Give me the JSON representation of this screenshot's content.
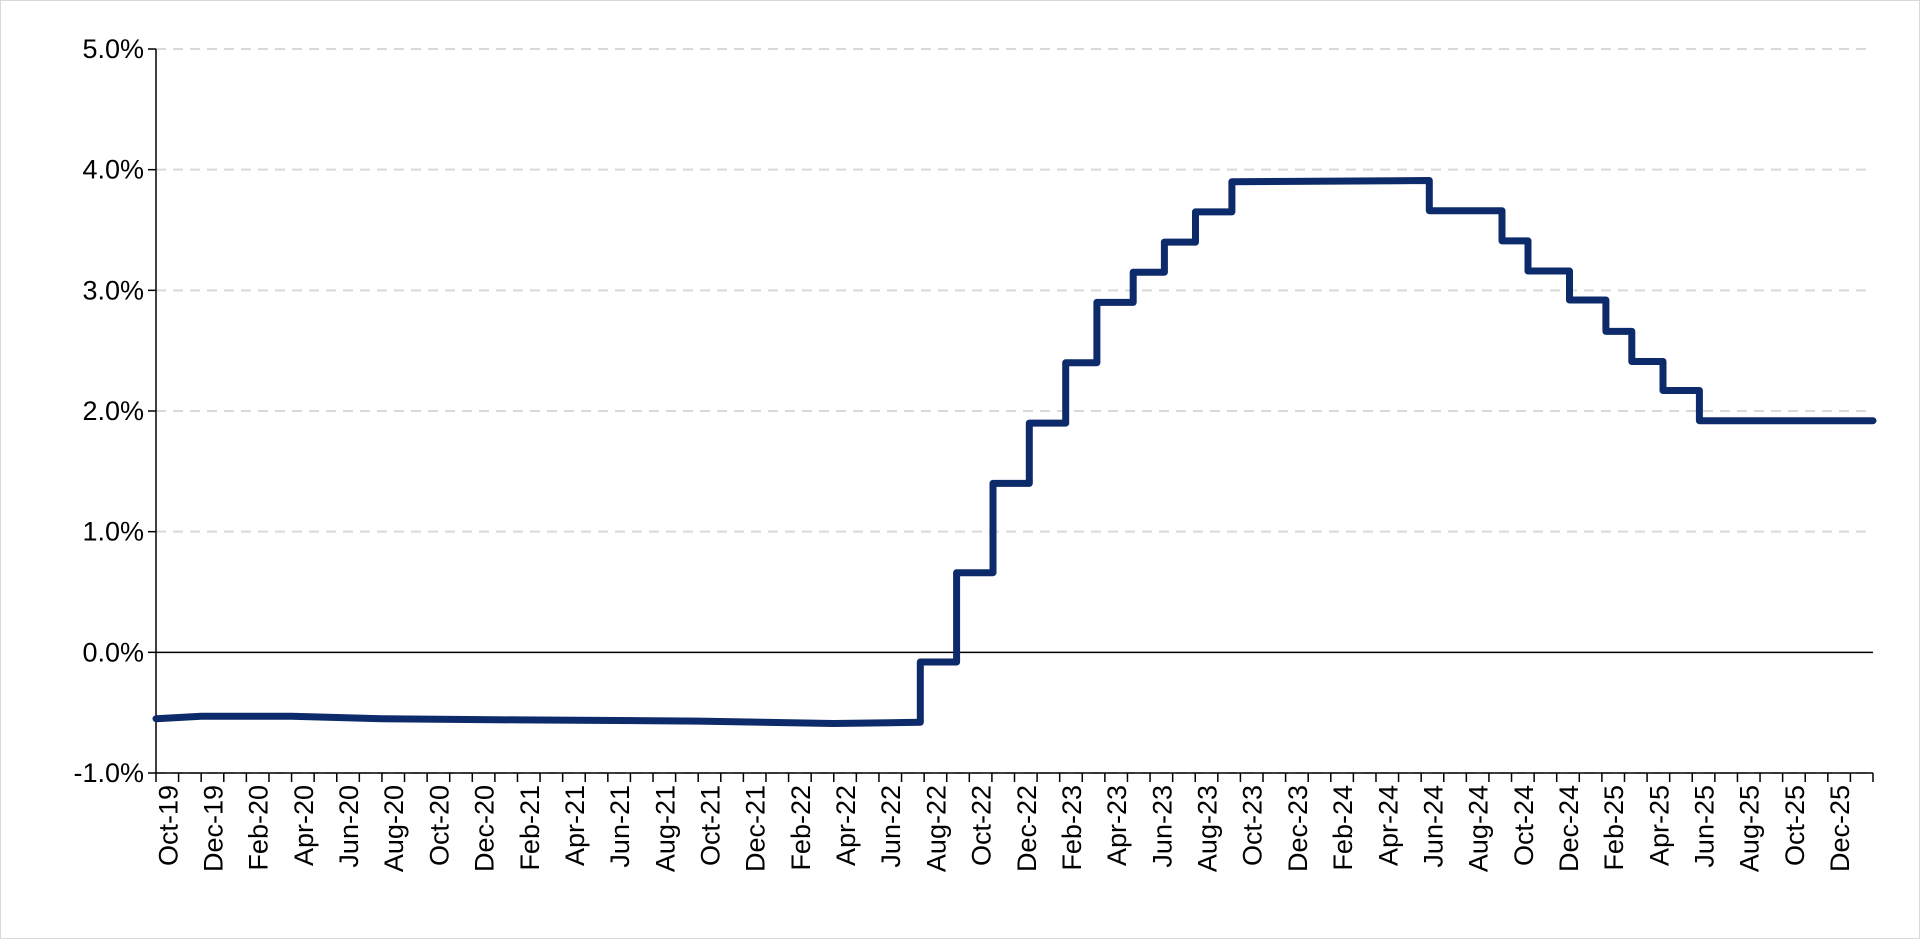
{
  "chart_data": {
    "type": "line",
    "title": "",
    "xlabel": "",
    "ylabel": "",
    "ylim": [
      -1.0,
      5.0
    ],
    "y_ticks": [
      -1.0,
      0.0,
      1.0,
      2.0,
      3.0,
      4.0,
      5.0
    ],
    "y_tick_labels": [
      "-1.0%",
      "0.0%",
      "1.0%",
      "2.0%",
      "3.0%",
      "4.0%",
      "5.0%"
    ],
    "x_tick_labels": [
      "Oct-19",
      "Dec-19",
      "Feb-20",
      "Apr-20",
      "Jun-20",
      "Aug-20",
      "Oct-20",
      "Dec-20",
      "Feb-21",
      "Apr-21",
      "Jun-21",
      "Aug-21",
      "Oct-21",
      "Dec-21",
      "Feb-22",
      "Apr-22",
      "Jun-22",
      "Aug-22",
      "Oct-22",
      "Dec-22",
      "Feb-23",
      "Apr-23",
      "Jun-23",
      "Aug-23",
      "Oct-23",
      "Dec-23",
      "Feb-24",
      "Apr-24",
      "Jun-24",
      "Aug-24",
      "Oct-24",
      "Dec-24",
      "Feb-25",
      "Apr-25",
      "Jun-25",
      "Aug-25",
      "Oct-25",
      "Dec-25"
    ],
    "x_range": [
      "2019-10-01",
      "2026-01-31"
    ],
    "grid": "horizontal dashed",
    "legend": "none",
    "series": [
      {
        "color": "#0d2a6b",
        "step": true,
        "points": [
          [
            "2019-10-01",
            -0.55
          ],
          [
            "2019-12-01",
            -0.53
          ],
          [
            "2020-04-01",
            -0.53
          ],
          [
            "2020-08-01",
            -0.55
          ],
          [
            "2021-02-01",
            -0.56
          ],
          [
            "2021-10-01",
            -0.57
          ],
          [
            "2022-04-01",
            -0.59
          ],
          [
            "2022-07-27",
            -0.58
          ],
          [
            "2022-07-27",
            -0.08
          ],
          [
            "2022-09-14",
            -0.08
          ],
          [
            "2022-09-14",
            0.66
          ],
          [
            "2022-11-02",
            0.66
          ],
          [
            "2022-11-02",
            1.4
          ],
          [
            "2022-12-21",
            1.4
          ],
          [
            "2022-12-21",
            1.9
          ],
          [
            "2023-02-08",
            1.9
          ],
          [
            "2023-02-08",
            2.4
          ],
          [
            "2023-03-22",
            2.4
          ],
          [
            "2023-03-22",
            2.9
          ],
          [
            "2023-05-10",
            2.9
          ],
          [
            "2023-05-10",
            3.15
          ],
          [
            "2023-06-21",
            3.15
          ],
          [
            "2023-06-21",
            3.4
          ],
          [
            "2023-08-02",
            3.4
          ],
          [
            "2023-08-02",
            3.65
          ],
          [
            "2023-09-20",
            3.65
          ],
          [
            "2023-09-20",
            3.9
          ],
          [
            "2024-06-12",
            3.91
          ],
          [
            "2024-06-12",
            3.66
          ],
          [
            "2024-09-18",
            3.66
          ],
          [
            "2024-09-18",
            3.41
          ],
          [
            "2024-10-23",
            3.41
          ],
          [
            "2024-10-23",
            3.16
          ],
          [
            "2024-12-18",
            3.16
          ],
          [
            "2024-12-18",
            2.92
          ],
          [
            "2025-02-05",
            2.92
          ],
          [
            "2025-02-05",
            2.66
          ],
          [
            "2025-03-12",
            2.66
          ],
          [
            "2025-03-12",
            2.41
          ],
          [
            "2025-04-23",
            2.41
          ],
          [
            "2025-04-23",
            2.17
          ],
          [
            "2025-06-11",
            2.17
          ],
          [
            "2025-06-11",
            1.92
          ],
          [
            "2026-01-31",
            1.92
          ]
        ]
      }
    ]
  }
}
